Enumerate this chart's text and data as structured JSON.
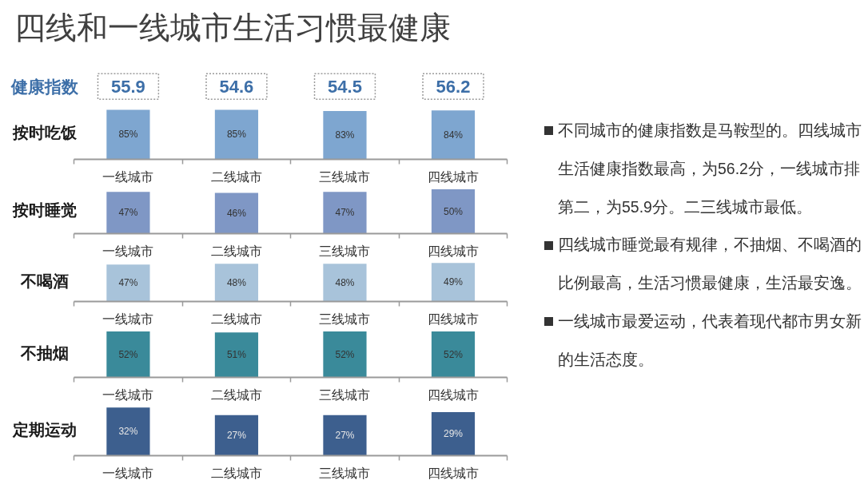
{
  "chart_data": [
    {
      "type": "other",
      "title": "四线和一线城市生活习惯最健康"
    },
    {
      "type": "other",
      "title": "健康指数",
      "categories": [
        null,
        null,
        null,
        null
      ],
      "values": [
        55.9,
        54.6,
        54.5,
        56.2
      ],
      "data_labels": true
    },
    {
      "type": "bar",
      "title": "按时吃饭",
      "categories": [
        "一线城市",
        "二线城市",
        "三线城市",
        "四线城市"
      ],
      "values": [
        85,
        85,
        83,
        84
      ],
      "value_labels": [
        "85%",
        "85%",
        "83%",
        "84%"
      ],
      "color": "#7ea6d0"
    },
    {
      "type": "bar",
      "title": "按时睡觉",
      "categories": [
        "一线城市",
        "二线城市",
        "三线城市",
        "四线城市"
      ],
      "values": [
        47,
        46,
        47,
        50
      ],
      "value_labels": [
        "47%",
        "46%",
        "47%",
        "50%"
      ],
      "color": "#7f97c5"
    },
    {
      "type": "bar",
      "title": "不喝酒",
      "categories": [
        "一线城市",
        "二线城市",
        "三线城市",
        "四线城市"
      ],
      "values": [
        47,
        48,
        48,
        49
      ],
      "value_labels": [
        "47%",
        "48%",
        "48%",
        "49%"
      ],
      "color": "#a8c3da"
    },
    {
      "type": "bar",
      "title": "不抽烟",
      "categories": [
        "一线城市",
        "二线城市",
        "三线城市",
        "四线城市"
      ],
      "values": [
        52,
        51,
        52,
        52
      ],
      "value_labels": [
        "52%",
        "51%",
        "52%",
        "52%"
      ],
      "color": "#3a8a9a"
    },
    {
      "type": "bar",
      "title": "定期运动",
      "categories": [
        "一线城市",
        "二线城市",
        "三线城市",
        "四线城市"
      ],
      "values": [
        32,
        27,
        27,
        29
      ],
      "value_labels": [
        "32%",
        "27%",
        "27%",
        "29%"
      ],
      "color": "#3d5f8e"
    },
    {
      "type": "other",
      "annotations": [
        "不同城市的健康指数是马鞍型的。四线城市生活健康指数最高，为56.2分，一线城市排第二，为55.9分。二三线城市最低。",
        "四线城市睡觉最有规律，不抽烟、不喝酒的比例最高，生活习惯最健康，生活最安逸。",
        "一线城市最爱运动，代表着现代都市男女新的生活态度。"
      ]
    }
  ]
}
